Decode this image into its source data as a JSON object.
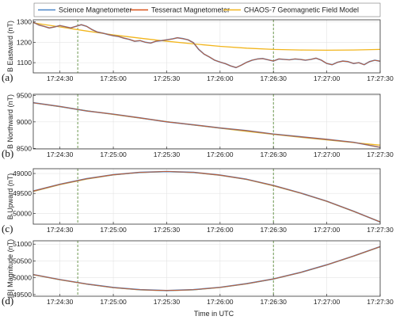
{
  "chart_data": {
    "type": "line",
    "legend": {
      "placement": "top",
      "entries": [
        {
          "label": "Science Magnetometer",
          "color": "#4a86c8"
        },
        {
          "label": "Tesseract Magnetometer",
          "color": "#d9541a"
        },
        {
          "label": "CHAOS-7 Geomagnetic Field Model",
          "color": "#f2b51c"
        }
      ]
    },
    "colors": {
      "science": "#4a86c8",
      "tesseract": "#d9541a",
      "model": "#f2b51c",
      "marker": "#5e8e3e"
    },
    "xlabel": "Time in UTC",
    "x_range_s": [
      0,
      195
    ],
    "x_ticks": [
      {
        "t": 15,
        "label": "17:24:30"
      },
      {
        "t": 45,
        "label": "17:25:00"
      },
      {
        "t": 75,
        "label": "17:25:30"
      },
      {
        "t": 105,
        "label": "17:26:00"
      },
      {
        "t": 135,
        "label": "17:26:30"
      },
      {
        "t": 165,
        "label": "17:27:00"
      },
      {
        "t": 195,
        "label": "17:27:30"
      }
    ],
    "vertical_markers_s": [
      25,
      135
    ],
    "grid": true,
    "panels": [
      {
        "id": "a",
        "panel_label": "(a)",
        "ylabel": "B Eastward (nT)",
        "ylim": [
          1050,
          1310
        ],
        "yticks": [
          1100,
          1200,
          1300
        ],
        "model": [
          [
            0,
            1295
          ],
          [
            15,
            1275
          ],
          [
            30,
            1255
          ],
          [
            45,
            1236
          ],
          [
            60,
            1220
          ],
          [
            75,
            1205
          ],
          [
            90,
            1192
          ],
          [
            105,
            1180
          ],
          [
            120,
            1171
          ],
          [
            135,
            1165
          ],
          [
            150,
            1162
          ],
          [
            165,
            1161
          ],
          [
            180,
            1162
          ],
          [
            195,
            1165
          ]
        ],
        "measured": [
          [
            0,
            1298
          ],
          [
            3,
            1285
          ],
          [
            6,
            1278
          ],
          [
            9,
            1270
          ],
          [
            12,
            1275
          ],
          [
            15,
            1282
          ],
          [
            18,
            1276
          ],
          [
            21,
            1270
          ],
          [
            24,
            1278
          ],
          [
            27,
            1286
          ],
          [
            30,
            1278
          ],
          [
            33,
            1262
          ],
          [
            36,
            1250
          ],
          [
            39,
            1245
          ],
          [
            42,
            1238
          ],
          [
            45,
            1232
          ],
          [
            48,
            1228
          ],
          [
            51,
            1220
          ],
          [
            54,
            1214
          ],
          [
            57,
            1205
          ],
          [
            60,
            1208
          ],
          [
            63,
            1200
          ],
          [
            66,
            1196
          ],
          [
            69,
            1205
          ],
          [
            72,
            1208
          ],
          [
            75,
            1212
          ],
          [
            78,
            1216
          ],
          [
            81,
            1222
          ],
          [
            84,
            1218
          ],
          [
            87,
            1212
          ],
          [
            90,
            1198
          ],
          [
            93,
            1165
          ],
          [
            96,
            1142
          ],
          [
            99,
            1128
          ],
          [
            102,
            1112
          ],
          [
            105,
            1103
          ],
          [
            108,
            1095
          ],
          [
            111,
            1084
          ],
          [
            114,
            1076
          ],
          [
            117,
            1088
          ],
          [
            120,
            1102
          ],
          [
            123,
            1112
          ],
          [
            126,
            1118
          ],
          [
            129,
            1120
          ],
          [
            132,
            1114
          ],
          [
            135,
            1108
          ],
          [
            138,
            1118
          ],
          [
            141,
            1116
          ],
          [
            144,
            1114
          ],
          [
            147,
            1118
          ],
          [
            150,
            1116
          ],
          [
            153,
            1112
          ],
          [
            156,
            1116
          ],
          [
            159,
            1122
          ],
          [
            162,
            1112
          ],
          [
            165,
            1096
          ],
          [
            168,
            1090
          ],
          [
            171,
            1102
          ],
          [
            174,
            1108
          ],
          [
            177,
            1105
          ],
          [
            180,
            1096
          ],
          [
            183,
            1100
          ],
          [
            186,
            1090
          ],
          [
            189,
            1105
          ],
          [
            192,
            1112
          ],
          [
            195,
            1107
          ]
        ]
      },
      {
        "id": "b",
        "panel_label": "(b)",
        "ylabel": "B Northward (nT)",
        "ylim": [
          8490,
          9520
        ],
        "yticks": [
          8500,
          9000,
          9500
        ],
        "model": [
          [
            0,
            9360
          ],
          [
            15,
            9285
          ],
          [
            30,
            9210
          ],
          [
            45,
            9140
          ],
          [
            60,
            9070
          ],
          [
            75,
            9005
          ],
          [
            90,
            8940
          ],
          [
            105,
            8880
          ],
          [
            120,
            8820
          ],
          [
            135,
            8765
          ],
          [
            150,
            8710
          ],
          [
            165,
            8660
          ],
          [
            180,
            8610
          ],
          [
            195,
            8560
          ]
        ],
        "measured": [
          [
            0,
            9360
          ],
          [
            15,
            9290
          ],
          [
            30,
            9205
          ],
          [
            45,
            9145
          ],
          [
            60,
            9075
          ],
          [
            75,
            9000
          ],
          [
            90,
            8945
          ],
          [
            105,
            8885
          ],
          [
            120,
            8835
          ],
          [
            135,
            8770
          ],
          [
            150,
            8720
          ],
          [
            165,
            8670
          ],
          [
            180,
            8615
          ],
          [
            195,
            8520
          ]
        ]
      },
      {
        "id": "c",
        "panel_label": "(c)",
        "ylabel": "B Upward (nT)",
        "ylim": [
          -50270,
          -48880
        ],
        "yticks": [
          -50000,
          -49500,
          -49000
        ],
        "model": [
          [
            0,
            -49450
          ],
          [
            15,
            -49280
          ],
          [
            30,
            -49140
          ],
          [
            45,
            -49035
          ],
          [
            60,
            -48975
          ],
          [
            75,
            -48955
          ],
          [
            90,
            -48975
          ],
          [
            105,
            -49045
          ],
          [
            120,
            -49150
          ],
          [
            135,
            -49310
          ],
          [
            150,
            -49490
          ],
          [
            165,
            -49700
          ],
          [
            180,
            -49950
          ],
          [
            195,
            -50210
          ]
        ],
        "measured": [
          [
            0,
            -49440
          ],
          [
            15,
            -49270
          ],
          [
            30,
            -49130
          ],
          [
            45,
            -49030
          ],
          [
            60,
            -48970
          ],
          [
            75,
            -48950
          ],
          [
            90,
            -48970
          ],
          [
            105,
            -49040
          ],
          [
            120,
            -49145
          ],
          [
            135,
            -49300
          ],
          [
            150,
            -49485
          ],
          [
            165,
            -49695
          ],
          [
            180,
            -49945
          ],
          [
            195,
            -50215
          ]
        ]
      },
      {
        "id": "d",
        "panel_label": "(d)",
        "ylabel": "|B| Magnitude (nT)",
        "ylim": [
          49450,
          51100
        ],
        "yticks": [
          49500,
          50000,
          50500,
          51000
        ],
        "model": [
          [
            0,
            50090
          ],
          [
            15,
            49940
          ],
          [
            30,
            49810
          ],
          [
            45,
            49705
          ],
          [
            60,
            49640
          ],
          [
            75,
            49615
          ],
          [
            90,
            49640
          ],
          [
            105,
            49710
          ],
          [
            120,
            49820
          ],
          [
            135,
            49960
          ],
          [
            150,
            50150
          ],
          [
            165,
            50380
          ],
          [
            180,
            50640
          ],
          [
            195,
            50920
          ]
        ],
        "measured": [
          [
            0,
            50095
          ],
          [
            15,
            49945
          ],
          [
            30,
            49815
          ],
          [
            45,
            49710
          ],
          [
            60,
            49645
          ],
          [
            75,
            49620
          ],
          [
            90,
            49645
          ],
          [
            105,
            49715
          ],
          [
            120,
            49825
          ],
          [
            135,
            49965
          ],
          [
            150,
            50155
          ],
          [
            165,
            50385
          ],
          [
            180,
            50645
          ],
          [
            195,
            50925
          ]
        ]
      }
    ]
  }
}
